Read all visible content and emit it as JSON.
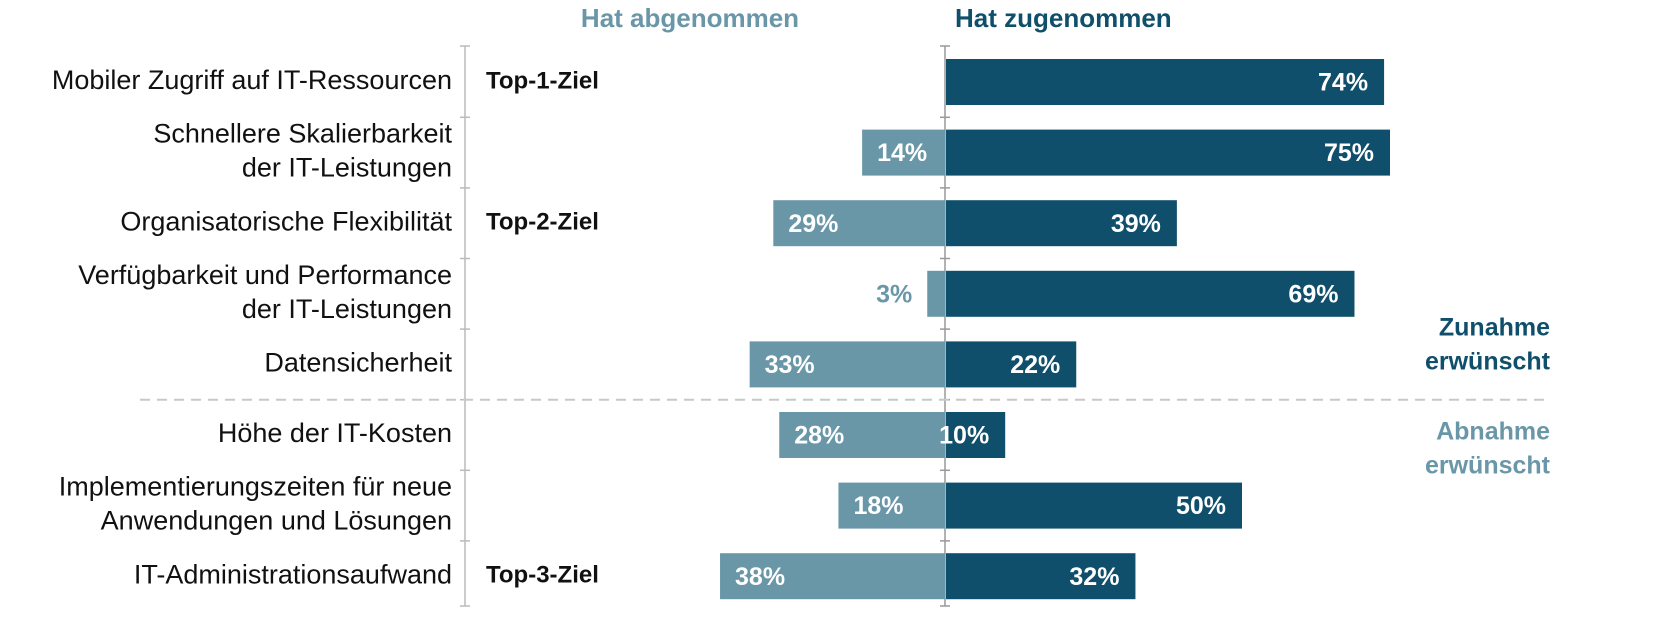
{
  "chart_data": {
    "type": "diverging-bar",
    "categories": [
      "Mobiler Zugriff auf IT-Ressourcen",
      "Schnellere Skalierbarkeit\nder IT-Leistungen",
      "Organisatorische Flexibilität",
      "Verfügbarkeit und Performance\nder IT-Leistungen",
      "Datensicherheit",
      "Höhe der IT-Kosten",
      "Implementierungszeiten für neue\nAnwendungen und Lösungen",
      "IT-Administrationsaufwand"
    ],
    "targets": [
      "Top-1-Ziel",
      null,
      "Top-2-Ziel",
      null,
      null,
      null,
      null,
      "Top-3-Ziel"
    ],
    "series": [
      {
        "name": "Hat abgenommen",
        "color": "#6a97a8",
        "values": [
          null,
          14,
          29,
          3,
          33,
          28,
          18,
          38
        ],
        "value_labels": [
          null,
          "14%",
          "29%",
          "3%",
          "33%",
          "28%",
          "18%",
          "38%"
        ]
      },
      {
        "name": "Hat zugenommen",
        "color": "#0f4f6b",
        "values": [
          74,
          75,
          39,
          69,
          22,
          10,
          50,
          32
        ],
        "value_labels": [
          "74%",
          "75%",
          "39%",
          "69%",
          "22%",
          "10%",
          "50%",
          "32%"
        ]
      }
    ],
    "groups": [
      {
        "label": "Zunahme\nerwünscht",
        "color": "#0f4f6b"
      },
      {
        "label": "Abnahme\nerwünscht",
        "color": "#6a97a8"
      }
    ]
  }
}
